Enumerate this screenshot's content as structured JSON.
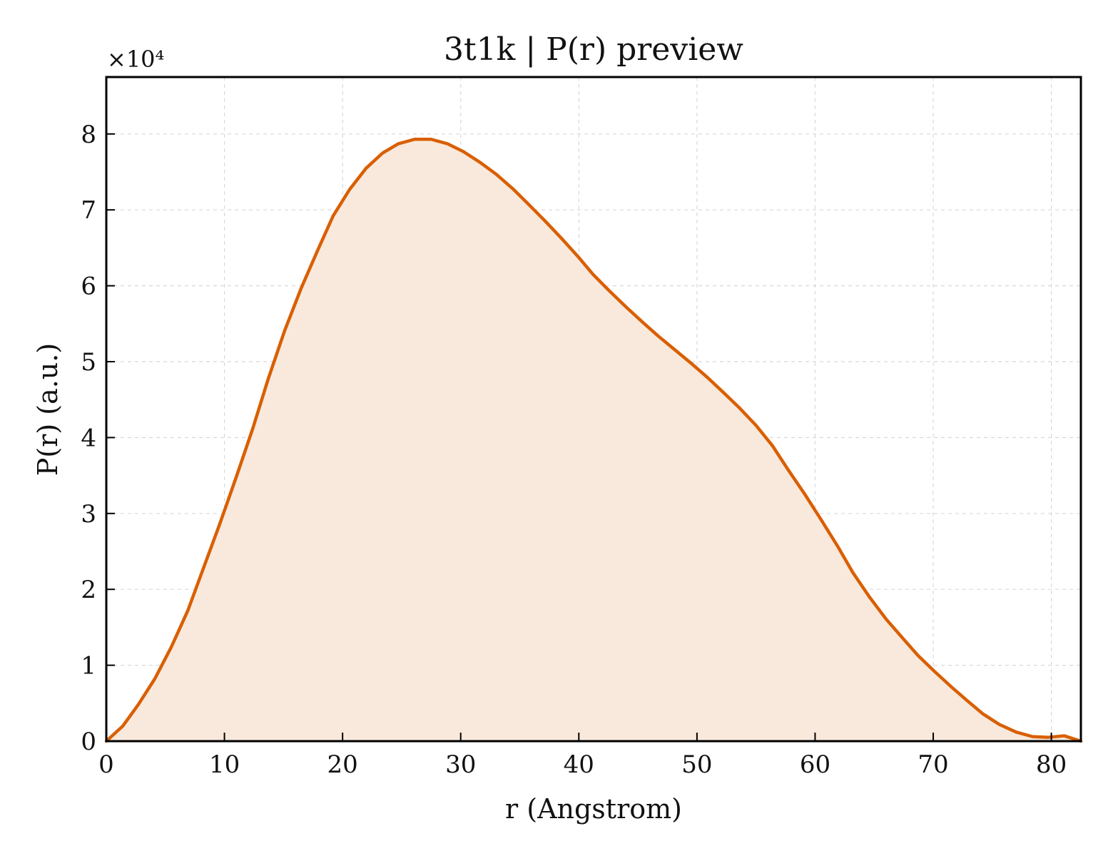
{
  "chart_data": {
    "type": "area",
    "title": "3t1k | P(r) preview",
    "xlabel": "r (Angstrom)",
    "ylabel": "P(r) (a.u.)",
    "y_scale_note": "×10⁴",
    "xlim": [
      0,
      82.5
    ],
    "ylim": [
      0,
      8.75
    ],
    "x_ticks": [
      0,
      10,
      20,
      30,
      40,
      50,
      60,
      70,
      80
    ],
    "y_ticks": [
      0,
      1,
      2,
      3,
      4,
      5,
      6,
      7,
      8
    ],
    "grid": true,
    "series": [
      {
        "color": "#d95f02",
        "fill_color": "#f9e9dd",
        "x": [
          0,
          1.4,
          2.7,
          4.1,
          5.5,
          6.9,
          8.2,
          9.6,
          11.0,
          12.4,
          13.7,
          15.1,
          16.5,
          17.9,
          19.2,
          20.6,
          22.0,
          23.4,
          24.7,
          26.1,
          27.5,
          28.9,
          30.2,
          31.6,
          33.0,
          34.4,
          35.7,
          37.1,
          38.5,
          39.9,
          41.2,
          42.6,
          44.0,
          45.4,
          46.7,
          48.1,
          49.5,
          50.9,
          52.2,
          53.6,
          55.0,
          56.4,
          57.7,
          59.1,
          60.5,
          61.9,
          63.2,
          64.6,
          66.0,
          67.4,
          68.7,
          70.1,
          71.5,
          72.9,
          74.2,
          75.6,
          77.0,
          78.4,
          79.7,
          81.1,
          82.5
        ],
        "y": [
          0.0,
          0.2,
          0.48,
          0.82,
          1.24,
          1.72,
          2.27,
          2.86,
          3.48,
          4.12,
          4.77,
          5.41,
          5.97,
          6.47,
          6.92,
          7.27,
          7.55,
          7.75,
          7.87,
          7.93,
          7.93,
          7.87,
          7.77,
          7.63,
          7.47,
          7.28,
          7.08,
          6.86,
          6.63,
          6.39,
          6.15,
          5.93,
          5.72,
          5.52,
          5.34,
          5.16,
          4.98,
          4.79,
          4.6,
          4.39,
          4.16,
          3.89,
          3.58,
          3.26,
          2.92,
          2.57,
          2.22,
          1.9,
          1.61,
          1.36,
          1.13,
          0.92,
          0.72,
          0.53,
          0.36,
          0.22,
          0.12,
          0.06,
          0.05,
          0.07,
          0.0
        ]
      }
    ]
  }
}
